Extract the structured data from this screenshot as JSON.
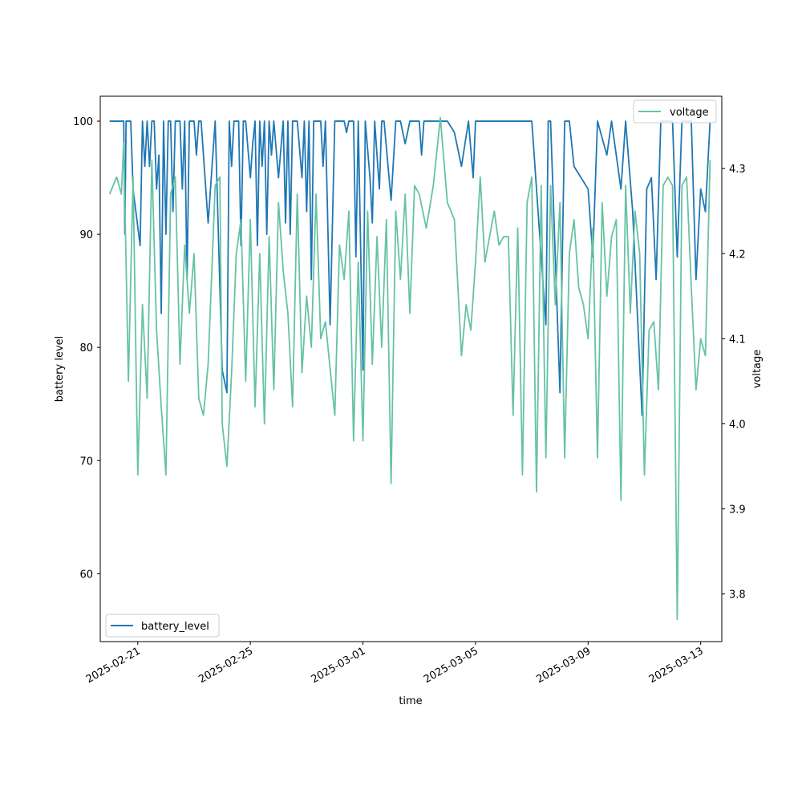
{
  "chart_data": {
    "type": "line",
    "xlabel": "time",
    "ylabel_left": "battery level",
    "ylabel_right": "voltage",
    "x_domain": [
      "2025-02-19T16:00",
      "2025-03-13T18:00"
    ],
    "x_ticks": [
      "2025-02-21",
      "2025-02-25",
      "2025-03-01",
      "2025-03-05",
      "2025-03-09",
      "2025-03-13"
    ],
    "left_axis": {
      "ylim": [
        54.0,
        102.2
      ],
      "ticks": [
        60,
        70,
        80,
        90,
        100
      ]
    },
    "right_axis": {
      "ylim": [
        3.744,
        4.385
      ],
      "ticks": [
        3.8,
        3.9,
        4.0,
        4.1,
        4.2,
        4.3
      ]
    },
    "series": [
      {
        "name": "battery_level",
        "axis": "left",
        "color": "#1f77b4",
        "legend_position": "lower-left",
        "points": [
          [
            "2025-02-20T00:00",
            100
          ],
          [
            "2025-02-20T12:00",
            100
          ],
          [
            "2025-02-20T13:00",
            90
          ],
          [
            "2025-02-20T14:00",
            100
          ],
          [
            "2025-02-20T18:00",
            100
          ],
          [
            "2025-02-20T20:00",
            94
          ],
          [
            "2025-02-21T02:00",
            89
          ],
          [
            "2025-02-21T04:00",
            100
          ],
          [
            "2025-02-21T06:00",
            96
          ],
          [
            "2025-02-21T08:00",
            100
          ],
          [
            "2025-02-21T10:00",
            96
          ],
          [
            "2025-02-21T12:00",
            100
          ],
          [
            "2025-02-21T14:00",
            100
          ],
          [
            "2025-02-21T16:00",
            94
          ],
          [
            "2025-02-21T18:00",
            97
          ],
          [
            "2025-02-21T20:00",
            83
          ],
          [
            "2025-02-21T22:00",
            100
          ],
          [
            "2025-02-22T00:00",
            90
          ],
          [
            "2025-02-22T02:00",
            100
          ],
          [
            "2025-02-22T04:00",
            100
          ],
          [
            "2025-02-22T06:00",
            92
          ],
          [
            "2025-02-22T08:00",
            100
          ],
          [
            "2025-02-22T12:00",
            100
          ],
          [
            "2025-02-22T14:00",
            94
          ],
          [
            "2025-02-22T16:00",
            100
          ],
          [
            "2025-02-22T18:00",
            86
          ],
          [
            "2025-02-22T20:00",
            100
          ],
          [
            "2025-02-23T00:00",
            100
          ],
          [
            "2025-02-23T02:00",
            97
          ],
          [
            "2025-02-23T04:00",
            100
          ],
          [
            "2025-02-23T06:00",
            100
          ],
          [
            "2025-02-23T12:00",
            91
          ],
          [
            "2025-02-23T18:00",
            100
          ],
          [
            "2025-02-24T00:00",
            78
          ],
          [
            "2025-02-24T04:00",
            76
          ],
          [
            "2025-02-24T06:00",
            100
          ],
          [
            "2025-02-24T08:00",
            96
          ],
          [
            "2025-02-24T10:00",
            100
          ],
          [
            "2025-02-24T14:00",
            100
          ],
          [
            "2025-02-24T16:00",
            89
          ],
          [
            "2025-02-24T18:00",
            100
          ],
          [
            "2025-02-24T20:00",
            100
          ],
          [
            "2025-02-25T00:00",
            95
          ],
          [
            "2025-02-25T02:00",
            98
          ],
          [
            "2025-02-25T04:00",
            100
          ],
          [
            "2025-02-25T06:00",
            89
          ],
          [
            "2025-02-25T08:00",
            100
          ],
          [
            "2025-02-25T10:00",
            96
          ],
          [
            "2025-02-25T12:00",
            100
          ],
          [
            "2025-02-25T14:00",
            90
          ],
          [
            "2025-02-25T16:00",
            100
          ],
          [
            "2025-02-25T18:00",
            97
          ],
          [
            "2025-02-25T20:00",
            100
          ],
          [
            "2025-02-26T00:00",
            95
          ],
          [
            "2025-02-26T04:00",
            100
          ],
          [
            "2025-02-26T06:00",
            91
          ],
          [
            "2025-02-26T08:00",
            100
          ],
          [
            "2025-02-26T10:00",
            90
          ],
          [
            "2025-02-26T12:00",
            100
          ],
          [
            "2025-02-26T16:00",
            100
          ],
          [
            "2025-02-26T20:00",
            95
          ],
          [
            "2025-02-26T22:00",
            100
          ],
          [
            "2025-02-27T00:00",
            92
          ],
          [
            "2025-02-27T02:00",
            100
          ],
          [
            "2025-02-27T04:00",
            86
          ],
          [
            "2025-02-27T06:00",
            100
          ],
          [
            "2025-02-27T12:00",
            100
          ],
          [
            "2025-02-27T14:00",
            96
          ],
          [
            "2025-02-27T16:00",
            100
          ],
          [
            "2025-02-27T20:00",
            82
          ],
          [
            "2025-02-28T00:00",
            100
          ],
          [
            "2025-02-28T06:00",
            100
          ],
          [
            "2025-02-28T08:00",
            100
          ],
          [
            "2025-02-28T10:00",
            99
          ],
          [
            "2025-02-28T12:00",
            100
          ],
          [
            "2025-02-28T16:00",
            100
          ],
          [
            "2025-02-28T18:00",
            88
          ],
          [
            "2025-02-28T20:00",
            100
          ],
          [
            "2025-03-01T00:00",
            78
          ],
          [
            "2025-03-01T02:00",
            100
          ],
          [
            "2025-03-01T06:00",
            95
          ],
          [
            "2025-03-01T08:00",
            91
          ],
          [
            "2025-03-01T10:00",
            100
          ],
          [
            "2025-03-01T14:00",
            94
          ],
          [
            "2025-03-01T16:00",
            100
          ],
          [
            "2025-03-01T18:00",
            100
          ],
          [
            "2025-03-02T00:00",
            93
          ],
          [
            "2025-03-02T04:00",
            100
          ],
          [
            "2025-03-02T08:00",
            100
          ],
          [
            "2025-03-02T12:00",
            98
          ],
          [
            "2025-03-02T16:00",
            100
          ],
          [
            "2025-03-02T20:00",
            100
          ],
          [
            "2025-03-03T00:00",
            100
          ],
          [
            "2025-03-03T02:00",
            97
          ],
          [
            "2025-03-03T04:00",
            100
          ],
          [
            "2025-03-04T00:00",
            100
          ],
          [
            "2025-03-04T06:00",
            99
          ],
          [
            "2025-03-04T12:00",
            96
          ],
          [
            "2025-03-04T18:00",
            100
          ],
          [
            "2025-03-04T22:00",
            95
          ],
          [
            "2025-03-05T00:00",
            100
          ],
          [
            "2025-03-06T00:00",
            100
          ],
          [
            "2025-03-07T00:00",
            100
          ],
          [
            "2025-03-07T12:00",
            82
          ],
          [
            "2025-03-07T14:00",
            100
          ],
          [
            "2025-03-07T16:00",
            100
          ],
          [
            "2025-03-08T00:00",
            76
          ],
          [
            "2025-03-08T04:00",
            100
          ],
          [
            "2025-03-08T08:00",
            100
          ],
          [
            "2025-03-08T12:00",
            96
          ],
          [
            "2025-03-09T00:00",
            94
          ],
          [
            "2025-03-09T04:00",
            88
          ],
          [
            "2025-03-09T08:00",
            100
          ],
          [
            "2025-03-09T16:00",
            97
          ],
          [
            "2025-03-09T20:00",
            100
          ],
          [
            "2025-03-10T04:00",
            94
          ],
          [
            "2025-03-10T08:00",
            100
          ],
          [
            "2025-03-10T14:00",
            92
          ],
          [
            "2025-03-10T22:00",
            74
          ],
          [
            "2025-03-11T02:00",
            94
          ],
          [
            "2025-03-11T06:00",
            95
          ],
          [
            "2025-03-11T10:00",
            86
          ],
          [
            "2025-03-11T14:00",
            100
          ],
          [
            "2025-03-12T00:00",
            100
          ],
          [
            "2025-03-12T04:00",
            88
          ],
          [
            "2025-03-12T08:00",
            100
          ],
          [
            "2025-03-12T16:00",
            100
          ],
          [
            "2025-03-12T20:00",
            86
          ],
          [
            "2025-03-13T00:00",
            94
          ],
          [
            "2025-03-13T04:00",
            92
          ],
          [
            "2025-03-13T08:00",
            100
          ]
        ]
      },
      {
        "name": "voltage",
        "axis": "right",
        "color": "#66c2a5",
        "legend_position": "upper-right",
        "points": [
          [
            "2025-02-20T00:00",
            4.27
          ],
          [
            "2025-02-20T06:00",
            4.29
          ],
          [
            "2025-02-20T10:00",
            4.27
          ],
          [
            "2025-02-20T12:00",
            4.33
          ],
          [
            "2025-02-20T16:00",
            4.05
          ],
          [
            "2025-02-20T20:00",
            4.29
          ],
          [
            "2025-02-21T00:00",
            3.94
          ],
          [
            "2025-02-21T04:00",
            4.14
          ],
          [
            "2025-02-21T08:00",
            4.03
          ],
          [
            "2025-02-21T12:00",
            4.31
          ],
          [
            "2025-02-21T16:00",
            4.11
          ],
          [
            "2025-02-21T20:00",
            4.02
          ],
          [
            "2025-02-22T00:00",
            3.94
          ],
          [
            "2025-02-22T04:00",
            4.27
          ],
          [
            "2025-02-22T08:00",
            4.29
          ],
          [
            "2025-02-22T12:00",
            4.07
          ],
          [
            "2025-02-22T16:00",
            4.21
          ],
          [
            "2025-02-22T20:00",
            4.13
          ],
          [
            "2025-02-23T00:00",
            4.2
          ],
          [
            "2025-02-23T04:00",
            4.03
          ],
          [
            "2025-02-23T08:00",
            4.01
          ],
          [
            "2025-02-23T12:00",
            4.07
          ],
          [
            "2025-02-23T18:00",
            4.28
          ],
          [
            "2025-02-23T22:00",
            4.29
          ],
          [
            "2025-02-24T00:00",
            4.0
          ],
          [
            "2025-02-24T04:00",
            3.95
          ],
          [
            "2025-02-24T08:00",
            4.06
          ],
          [
            "2025-02-24T12:00",
            4.2
          ],
          [
            "2025-02-24T16:00",
            4.24
          ],
          [
            "2025-02-24T20:00",
            4.05
          ],
          [
            "2025-02-25T00:00",
            4.24
          ],
          [
            "2025-02-25T04:00",
            4.02
          ],
          [
            "2025-02-25T08:00",
            4.2
          ],
          [
            "2025-02-25T12:00",
            4.0
          ],
          [
            "2025-02-25T16:00",
            4.22
          ],
          [
            "2025-02-25T20:00",
            4.04
          ],
          [
            "2025-02-26T00:00",
            4.26
          ],
          [
            "2025-02-26T04:00",
            4.18
          ],
          [
            "2025-02-26T08:00",
            4.13
          ],
          [
            "2025-02-26T12:00",
            4.02
          ],
          [
            "2025-02-26T16:00",
            4.27
          ],
          [
            "2025-02-26T20:00",
            4.06
          ],
          [
            "2025-02-27T00:00",
            4.15
          ],
          [
            "2025-02-27T04:00",
            4.09
          ],
          [
            "2025-02-27T08:00",
            4.27
          ],
          [
            "2025-02-27T12:00",
            4.1
          ],
          [
            "2025-02-27T16:00",
            4.12
          ],
          [
            "2025-02-28T00:00",
            4.01
          ],
          [
            "2025-02-28T04:00",
            4.21
          ],
          [
            "2025-02-28T08:00",
            4.17
          ],
          [
            "2025-02-28T12:00",
            4.25
          ],
          [
            "2025-02-28T16:00",
            3.98
          ],
          [
            "2025-02-28T20:00",
            4.19
          ],
          [
            "2025-03-01T00:00",
            3.98
          ],
          [
            "2025-03-01T04:00",
            4.25
          ],
          [
            "2025-03-01T08:00",
            4.07
          ],
          [
            "2025-03-01T12:00",
            4.22
          ],
          [
            "2025-03-01T16:00",
            4.09
          ],
          [
            "2025-03-01T20:00",
            4.24
          ],
          [
            "2025-03-02T00:00",
            3.93
          ],
          [
            "2025-03-02T04:00",
            4.25
          ],
          [
            "2025-03-02T08:00",
            4.17
          ],
          [
            "2025-03-02T12:00",
            4.27
          ],
          [
            "2025-03-02T16:00",
            4.13
          ],
          [
            "2025-03-02T20:00",
            4.28
          ],
          [
            "2025-03-03T00:00",
            4.27
          ],
          [
            "2025-03-03T06:00",
            4.23
          ],
          [
            "2025-03-03T12:00",
            4.28
          ],
          [
            "2025-03-03T18:00",
            4.36
          ],
          [
            "2025-03-04T00:00",
            4.26
          ],
          [
            "2025-03-04T06:00",
            4.24
          ],
          [
            "2025-03-04T12:00",
            4.08
          ],
          [
            "2025-03-04T16:00",
            4.14
          ],
          [
            "2025-03-04T20:00",
            4.11
          ],
          [
            "2025-03-05T00:00",
            4.19
          ],
          [
            "2025-03-05T04:00",
            4.29
          ],
          [
            "2025-03-05T08:00",
            4.19
          ],
          [
            "2025-03-05T16:00",
            4.25
          ],
          [
            "2025-03-05T20:00",
            4.21
          ],
          [
            "2025-03-06T00:00",
            4.22
          ],
          [
            "2025-03-06T04:00",
            4.22
          ],
          [
            "2025-03-06T08:00",
            4.01
          ],
          [
            "2025-03-06T12:00",
            4.23
          ],
          [
            "2025-03-06T16:00",
            3.94
          ],
          [
            "2025-03-06T20:00",
            4.26
          ],
          [
            "2025-03-07T00:00",
            4.29
          ],
          [
            "2025-03-07T04:00",
            3.92
          ],
          [
            "2025-03-07T08:00",
            4.28
          ],
          [
            "2025-03-07T12:00",
            3.96
          ],
          [
            "2025-03-07T16:00",
            4.28
          ],
          [
            "2025-03-07T20:00",
            4.14
          ],
          [
            "2025-03-08T00:00",
            4.26
          ],
          [
            "2025-03-08T04:00",
            3.96
          ],
          [
            "2025-03-08T08:00",
            4.2
          ],
          [
            "2025-03-08T12:00",
            4.24
          ],
          [
            "2025-03-08T16:00",
            4.16
          ],
          [
            "2025-03-08T20:00",
            4.14
          ],
          [
            "2025-03-09T00:00",
            4.1
          ],
          [
            "2025-03-09T04:00",
            4.23
          ],
          [
            "2025-03-09T08:00",
            3.96
          ],
          [
            "2025-03-09T12:00",
            4.26
          ],
          [
            "2025-03-09T16:00",
            4.15
          ],
          [
            "2025-03-09T20:00",
            4.22
          ],
          [
            "2025-03-10T00:00",
            4.24
          ],
          [
            "2025-03-10T04:00",
            3.91
          ],
          [
            "2025-03-10T08:00",
            4.28
          ],
          [
            "2025-03-10T12:00",
            4.13
          ],
          [
            "2025-03-10T16:00",
            4.25
          ],
          [
            "2025-03-10T20:00",
            4.2
          ],
          [
            "2025-03-11T00:00",
            3.94
          ],
          [
            "2025-03-11T04:00",
            4.11
          ],
          [
            "2025-03-11T08:00",
            4.12
          ],
          [
            "2025-03-11T12:00",
            4.04
          ],
          [
            "2025-03-11T16:00",
            4.28
          ],
          [
            "2025-03-11T20:00",
            4.29
          ],
          [
            "2025-03-12T00:00",
            4.28
          ],
          [
            "2025-03-12T04:00",
            3.77
          ],
          [
            "2025-03-12T08:00",
            4.28
          ],
          [
            "2025-03-12T12:00",
            4.29
          ],
          [
            "2025-03-12T16:00",
            4.16
          ],
          [
            "2025-03-12T20:00",
            4.04
          ],
          [
            "2025-03-13T00:00",
            4.1
          ],
          [
            "2025-03-13T04:00",
            4.08
          ],
          [
            "2025-03-13T08:00",
            4.31
          ]
        ]
      }
    ]
  }
}
